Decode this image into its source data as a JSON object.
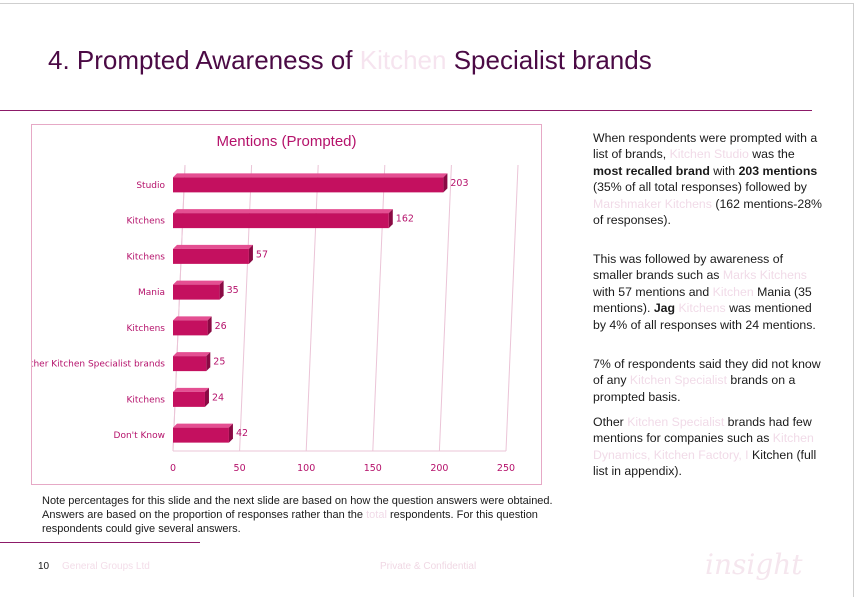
{
  "slide": {
    "title_num": "4.",
    "title_a": "Prompted Awareness of",
    "title_faint": "Kitchen",
    "title_b": "Specialist brands"
  },
  "chart_data": {
    "type": "bar",
    "orientation": "horizontal",
    "title": "Mentions (Prompted)",
    "categories": [
      "Studio",
      "Kitchens",
      "Kitchens",
      "Mania",
      "Kitchens",
      "Other Kitchen Specialist brands",
      "Kitchens",
      "Don't Know"
    ],
    "values": [
      203,
      162,
      57,
      35,
      26,
      25,
      24,
      42
    ],
    "xlim": [
      0,
      250
    ],
    "xticks": [
      "0",
      "50",
      "100",
      "150",
      "200",
      "250"
    ],
    "grid": true,
    "bar_color": "#c4105f"
  },
  "text": {
    "p1": [
      "When respondents were prompted with a list of brands,",
      "Kitchen Studio",
      "was the",
      "most recalled brand",
      "with",
      "203 mentions",
      "(35% of all total responses) followed by",
      "Marshmaker Kitchens",
      "(162 mentions-28% of responses)."
    ],
    "p2": [
      "This was followed by awareness of smaller brands such as",
      "Marks Kitchens",
      "with 57 mentions and",
      "Kitchen",
      "Mania (35 mentions).",
      "Jag",
      "Kitchens",
      "was mentioned by 4% of all responses with 24 mentions."
    ],
    "p3": [
      "7% of respondents said they did not know of any",
      "Kitchen Specialist",
      "brands on a prompted basis."
    ],
    "p4": [
      "Other",
      "Kitchen Specialist",
      "brands had few mentions for companies such as",
      "Kitchen Dynamics, Kitchen Factory, I",
      "Kitchen (full list in appendix)."
    ]
  },
  "note": {
    "a": "Note percentages for this slide and the next slide are based on how the question answers were obtained. Answers are based on the proportion of responses rather than the",
    "faint": "total",
    "b": "respondents. For this question respondents could give several answers."
  },
  "footer": {
    "page": "10",
    "company": "General Groups Ltd",
    "conf": "Private & Confidential",
    "logo": "insight"
  }
}
